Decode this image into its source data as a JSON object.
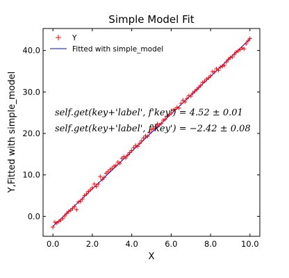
{
  "chart_data": {
    "type": "scatter",
    "title": "Simple Model Fit",
    "xlabel": "X",
    "ylabel": "Y,Fitted with simple_model",
    "xlim": [
      -0.5,
      10.5
    ],
    "ylim": [
      -4.8,
      45.3
    ],
    "xticks": [
      0,
      2,
      4,
      6,
      8,
      10
    ],
    "xtick_labels": [
      "0.0",
      "2.0",
      "4.0",
      "6.0",
      "8.0",
      "10.0"
    ],
    "yticks": [
      0,
      10,
      20,
      30,
      40
    ],
    "ytick_labels": [
      "0.0",
      "10.0",
      "20.0",
      "30.0",
      "40.0"
    ],
    "grid": false,
    "legend_position": "top-left",
    "series": [
      {
        "name": "Y",
        "kind": "scatter",
        "marker": "+",
        "color": "#ff0000",
        "x": [
          0.0,
          0.1,
          0.2,
          0.3,
          0.4,
          0.5,
          0.6,
          0.7,
          0.8,
          0.9,
          1.0,
          1.1,
          1.2,
          1.3,
          1.4,
          1.5,
          1.6,
          1.7,
          1.8,
          1.9,
          2.0,
          2.1,
          2.2,
          2.3,
          2.4,
          2.5,
          2.6,
          2.7,
          2.8,
          2.9,
          3.0,
          3.1,
          3.2,
          3.3,
          3.4,
          3.5,
          3.6,
          3.7,
          3.8,
          3.9,
          4.0,
          4.1,
          4.2,
          4.3,
          4.4,
          4.5,
          4.6,
          4.7,
          4.8,
          4.9,
          5.0,
          5.1,
          5.2,
          5.3,
          5.4,
          5.5,
          5.6,
          5.7,
          5.8,
          5.9,
          6.0,
          6.1,
          6.2,
          6.3,
          6.4,
          6.5,
          6.6,
          6.7,
          6.8,
          6.9,
          7.0,
          7.1,
          7.2,
          7.3,
          7.4,
          7.5,
          7.6,
          7.7,
          7.8,
          7.9,
          8.0,
          8.1,
          8.2,
          8.3,
          8.4,
          8.5,
          8.6,
          8.7,
          8.8,
          8.9,
          9.0,
          9.1,
          9.2,
          9.3,
          9.4,
          9.5,
          9.6,
          9.7,
          9.8,
          9.9,
          10.0
        ],
        "y": [
          -2.6,
          -1.4,
          -1.6,
          -1.2,
          -0.9,
          -0.5,
          0.1,
          0.7,
          1.2,
          1.5,
          1.9,
          2.4,
          1.6,
          3.5,
          3.6,
          4.2,
          5.0,
          5.4,
          6.0,
          6.4,
          6.9,
          7.8,
          7.2,
          7.8,
          9.6,
          8.9,
          9.4,
          10.4,
          10.8,
          11.3,
          11.6,
          12.1,
          12.3,
          13.1,
          12.8,
          14.0,
          14.4,
          14.1,
          14.8,
          15.4,
          15.9,
          16.6,
          17.1,
          16.9,
          17.6,
          18.2,
          18.9,
          19.4,
          19.3,
          20.3,
          20.9,
          21.2,
          21.6,
          22.3,
          22.0,
          22.4,
          23.2,
          23.4,
          24.2,
          24.5,
          24.9,
          25.6,
          25.8,
          26.3,
          26.1,
          27.2,
          28.0,
          27.6,
          28.4,
          29.1,
          29.0,
          29.7,
          30.2,
          30.6,
          31.1,
          31.6,
          32.3,
          32.6,
          33.1,
          33.4,
          33.9,
          34.9,
          34.8,
          35.6,
          35.2,
          36.0,
          36.2,
          36.4,
          37.2,
          37.8,
          38.3,
          38.4,
          39.0,
          39.6,
          39.9,
          40.2,
          40.6,
          40.4,
          41.6,
          42.3,
          42.9
        ]
      },
      {
        "name": "Fitted with simple_model",
        "kind": "line",
        "color": "#0000cc",
        "x": [
          0,
          10
        ],
        "y": [
          -2.42,
          42.78
        ]
      }
    ],
    "annotations": [
      "$self.get(key+'label', f'key') = 4.52 \\pm 0.01$",
      "$self.get(key+'label', f'key') = -2.42 \\pm 0.08$"
    ],
    "annotation_display": [
      "self.get(key+'label', f'key') = 4.52 ± 0.01",
      "self.get(key+'label', f'key') = −2.42 ± 0.08"
    ]
  }
}
